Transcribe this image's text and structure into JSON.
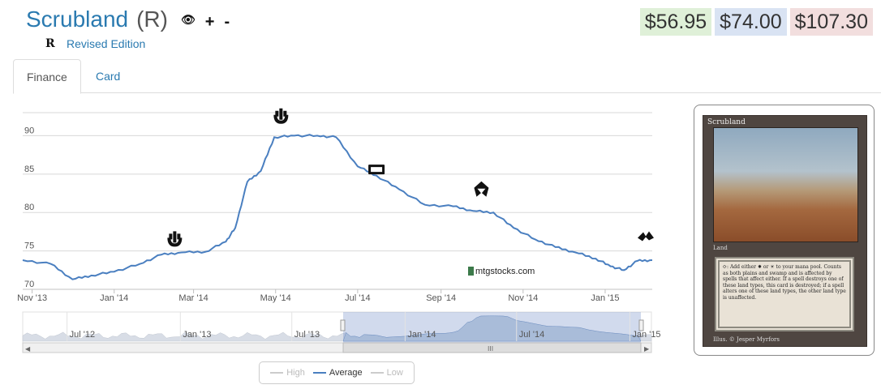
{
  "card": {
    "name": "Scrubland",
    "rarity": "(R)",
    "set_symbol": "R",
    "set_name": "Revised Edition",
    "tools": [
      {
        "name": "eye-toggle-icon",
        "glyph": "👁"
      },
      {
        "name": "plus-icon",
        "glyph": "+"
      },
      {
        "name": "minus-icon",
        "glyph": "-"
      }
    ]
  },
  "prices": {
    "low": "$56.95",
    "average": "$74.00",
    "high": "$107.30",
    "colors": {
      "low": "#dff0d8",
      "average": "#d9e3f3",
      "high": "#f2dede"
    }
  },
  "tabs": [
    {
      "label": "Finance",
      "active": true
    },
    {
      "label": "Card",
      "active": false
    }
  ],
  "chart_data": {
    "type": "line",
    "watermark": "mtgstocks.com",
    "x_tick_labels": [
      "Nov '13",
      "Jan '14",
      "Mar '14",
      "May '14",
      "Jul '14",
      "Sep '14",
      "Nov '14",
      "Jan '15"
    ],
    "y_tick_labels": [
      "70",
      "75",
      "80",
      "85",
      "90"
    ],
    "ylim": [
      70,
      93
    ],
    "xlim": [
      "2013-10-25",
      "2015-02-05"
    ],
    "grid": true,
    "series": [
      {
        "name": "Average",
        "color": "#4a7fc0",
        "x": [
          "2013-10-25",
          "2013-11-15",
          "2013-12-01",
          "2013-12-15",
          "2014-01-01",
          "2014-01-20",
          "2014-02-05",
          "2014-02-20",
          "2014-03-10",
          "2014-03-25",
          "2014-04-01",
          "2014-04-10",
          "2014-04-20",
          "2014-04-30",
          "2014-05-15",
          "2014-06-01",
          "2014-06-15",
          "2014-07-01",
          "2014-07-15",
          "2014-08-01",
          "2014-08-20",
          "2014-09-10",
          "2014-09-25",
          "2014-10-10",
          "2014-10-25",
          "2014-11-10",
          "2014-11-25",
          "2014-12-10",
          "2014-12-25",
          "2015-01-05",
          "2015-01-15",
          "2015-01-25",
          "2015-02-05"
        ],
        "values": [
          73.8,
          73.3,
          71.3,
          71.8,
          72.3,
          73.3,
          74.5,
          74.8,
          74.9,
          76.2,
          78.0,
          84.0,
          85.4,
          89.8,
          90.0,
          90.0,
          89.8,
          86.0,
          84.8,
          83.0,
          81.0,
          80.8,
          80.2,
          80.0,
          78.0,
          76.5,
          75.5,
          74.8,
          74.0,
          73.0,
          72.5,
          73.7,
          73.8
        ]
      }
    ],
    "event_markers": [
      {
        "date": "2014-02-15",
        "value": 76.5,
        "icon": "set-symbol-icon"
      },
      {
        "date": "2014-05-05",
        "value": 92.5,
        "icon": "set-symbol-icon"
      },
      {
        "date": "2014-07-15",
        "value": 85.6,
        "icon": "m15-set-icon"
      },
      {
        "date": "2014-10-01",
        "value": 83.0,
        "icon": "khans-set-icon"
      },
      {
        "date": "2015-02-05",
        "value": 76.7,
        "icon": "fate-reforged-set-icon"
      }
    ],
    "navigator": {
      "x_tick_labels": [
        "Jul '12",
        "Jan '13",
        "Jul '13",
        "Jan '14",
        "Jul '14",
        "Jan '15"
      ],
      "selected_range": [
        "2013-10-25",
        "2015-02-05"
      ]
    },
    "legend": [
      {
        "label": "High",
        "enabled": false,
        "color": "#cccccc"
      },
      {
        "label": "Average",
        "enabled": true,
        "color": "#4a7fc0"
      },
      {
        "label": "Low",
        "enabled": false,
        "color": "#cccccc"
      }
    ]
  },
  "card_image": {
    "title": "Scrubland",
    "type_line": "Land",
    "rules_text": "⟳: Add either ✸ or ☀ to your mana pool. Counts as both plains and swamp and is affected by spells that affect either. If a spell destroys one of these land types, this card is destroyed; if a spell alters one of these land types, the other land type is unaffected.",
    "illustrator": "Illus. © Jesper Myrfors"
  }
}
